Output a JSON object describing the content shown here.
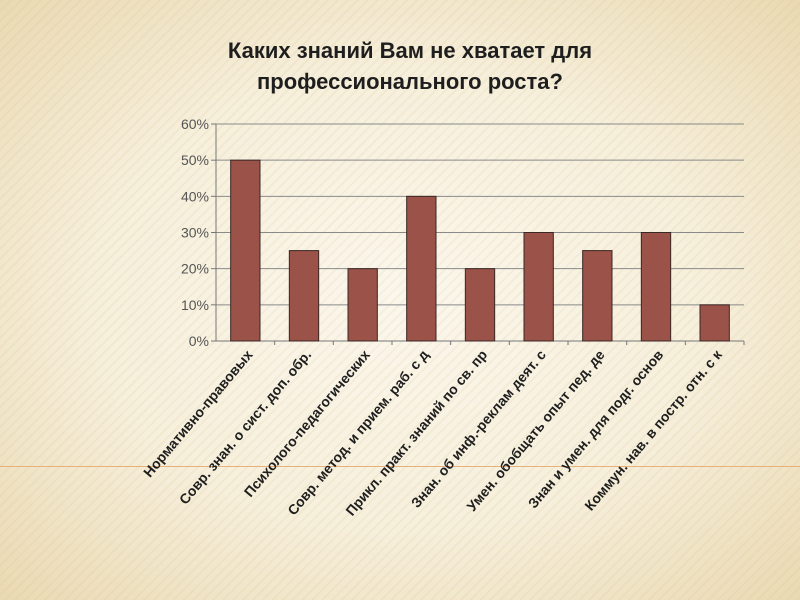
{
  "chart_data": {
    "type": "bar",
    "title": "Каких знаний Вам не хватает для\nпрофессионального роста?",
    "categories": [
      "Нормативно-правовых",
      "Совр. знан. о сист. доп. обр.",
      "Психолого-педагогических",
      "Совр. метод. и прием. раб. с д",
      "Прикл. практ. знаний по св. пр",
      "Знан. об инф.-реклам деят. с",
      "Умен. обобщать опыт пед. де",
      "Знан и умен. для подг. основ",
      "Коммун. нав. в постр. отн. с к"
    ],
    "values": [
      50,
      25,
      20,
      40,
      20,
      30,
      25,
      30,
      10
    ],
    "ylim": [
      0,
      60
    ],
    "yticks": [
      "0%",
      "10%",
      "20%",
      "30%",
      "40%",
      "50%",
      "60%"
    ],
    "grid": true,
    "colors": {
      "bar": "#9b5248",
      "bar_edge": "#3a2723",
      "grid": "#8a8a8a",
      "axis": "#777777",
      "text": "#1e1e1e"
    }
  }
}
